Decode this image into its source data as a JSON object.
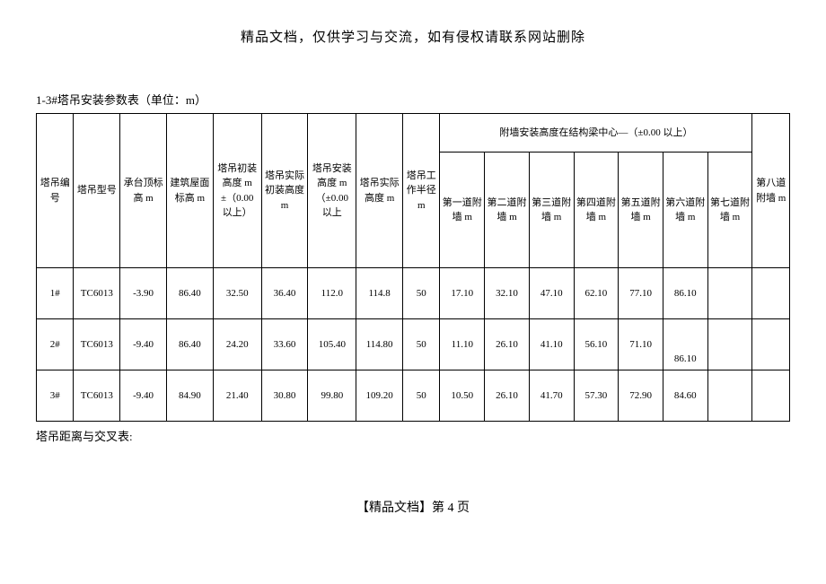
{
  "header": "精品文档，仅供学习与交流，如有侵权请联系网站删除",
  "caption": "1-3#塔吊安装参数表（单位：m）",
  "merged_header": "附墙安装高度在结构梁中心—（±0.00 以上）",
  "columns": {
    "c0": "塔吊编号",
    "c1": "塔吊型号",
    "c2": "承台顶标高 m",
    "c3": "建筑屋面标高 m",
    "c4": "塔吊初装高度 m±（0.00 以上）",
    "c5": "塔吊实际初装高度 m",
    "c6": "塔吊安装高度 m（±0.00 以上",
    "c7": "塔吊实际高度 m",
    "c8": "塔吊工作半径 m",
    "s0": "第一道附墙 m",
    "s1": "第二道附墙 m",
    "s2": "第三道附墙 m",
    "s3": "第四道附墙 m",
    "s4": "第五道附墙 m",
    "s5": "第六道附墙 m",
    "s6": "第七道附墙 m",
    "s7": "第八道附墙 m"
  },
  "rows": [
    {
      "c0": "1#",
      "c1": "TC6013",
      "c2": "-3.90",
      "c3": "86.40",
      "c4": "32.50",
      "c5": "36.40",
      "c6": "112.0",
      "c7": "114.8",
      "c8": "50",
      "s0": "17.10",
      "s1": "32.10",
      "s2": "47.10",
      "s3": "62.10",
      "s4": "77.10",
      "s5": "86.10",
      "s6": "",
      "s7": ""
    },
    {
      "c0": "2#",
      "c1": "TC6013",
      "c2": "-9.40",
      "c3": "86.40",
      "c4": "24.20",
      "c5": "33.60",
      "c6": "105.40",
      "c7": "114.80",
      "c8": "50",
      "s0": "11.10",
      "s1": "26.10",
      "s2": "41.10",
      "s3": "56.10",
      "s4": "71.10",
      "s5": "86.10",
      "s6": "",
      "s7": ""
    },
    {
      "c0": "3#",
      "c1": "TC6013",
      "c2": "-9.40",
      "c3": "84.90",
      "c4": "21.40",
      "c5": "30.80",
      "c6": "99.80",
      "c7": "109.20",
      "c8": "50",
      "s0": "10.50",
      "s1": "26.10",
      "s2": "41.70",
      "s3": "57.30",
      "s4": "72.90",
      "s5": "84.60",
      "s6": "",
      "s7": ""
    }
  ],
  "below_caption": "塔吊距离与交叉表:",
  "footer": "【精品文档】第 4 页"
}
